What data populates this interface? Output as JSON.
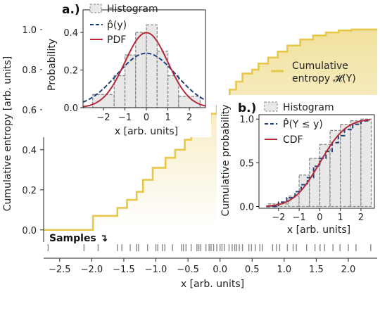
{
  "chart_data": [
    {
      "type": "line",
      "panel": "main",
      "xlabel": "x [arb. units]",
      "ylabel": "Cumulative entropy [arb. units]",
      "xlim": [
        -2.75,
        2.45
      ],
      "ylim": [
        -0.05,
        1.07
      ],
      "x_ticks": [
        "−2.5",
        "−2.0",
        "−1.5",
        "−1.0",
        "−0.5",
        "0.0",
        "0.5",
        "1.0",
        "1.5",
        "2.0"
      ],
      "x_tick_values": [
        -2.5,
        -2.0,
        -1.5,
        -1.0,
        -0.5,
        0.0,
        0.5,
        1.0,
        1.5,
        2.0
      ],
      "y_ticks": [
        "0.0",
        "0.2",
        "0.4",
        "0.6",
        "0.8",
        "1.0"
      ],
      "y_tick_values": [
        0.0,
        0.2,
        0.4,
        0.6,
        0.8,
        1.0
      ],
      "series": [
        {
          "name": "Cumulative entropy 𝓗(Y)",
          "color": "#e6c84d",
          "step_x": [
            -2.75,
            -1.98,
            -1.98,
            -1.6,
            -1.6,
            -1.45,
            -1.45,
            -1.3,
            -1.3,
            -1.2,
            -1.2,
            -1.05,
            -1.05,
            -0.85,
            -0.85,
            -0.7,
            -0.7,
            -0.55,
            -0.55,
            -0.45,
            -0.45,
            -0.25,
            -0.25,
            -0.15,
            -0.15,
            -0.05,
            -0.05,
            0.05,
            0.05,
            0.15,
            0.15,
            0.25,
            0.25,
            0.35,
            0.35,
            0.5,
            0.5,
            0.6,
            0.6,
            0.75,
            0.75,
            0.9,
            0.9,
            1.05,
            1.05,
            1.25,
            1.25,
            1.45,
            1.45,
            1.65,
            1.65,
            1.85,
            1.85,
            2.05,
            2.05,
            2.25,
            2.25,
            2.45
          ],
          "step_y": [
            0.0,
            0.0,
            0.07,
            0.07,
            0.11,
            0.11,
            0.15,
            0.15,
            0.19,
            0.19,
            0.25,
            0.25,
            0.31,
            0.31,
            0.36,
            0.36,
            0.4,
            0.4,
            0.45,
            0.45,
            0.48,
            0.48,
            0.53,
            0.53,
            0.58,
            0.58,
            0.62,
            0.62,
            0.66,
            0.66,
            0.7,
            0.7,
            0.74,
            0.74,
            0.78,
            0.78,
            0.8,
            0.8,
            0.83,
            0.83,
            0.86,
            0.86,
            0.89,
            0.89,
            0.92,
            0.92,
            0.95,
            0.95,
            0.97,
            0.97,
            0.985,
            0.985,
            0.995,
            0.995,
            1.0,
            1.0,
            1.0,
            1.0
          ]
        }
      ],
      "samples_label": "Samples ↴",
      "samples_x": [
        -2.68,
        -2.12,
        -1.9,
        -1.6,
        -1.53,
        -1.4,
        -1.3,
        -1.27,
        -1.13,
        -1.0,
        -0.97,
        -0.9,
        -0.86,
        -0.74,
        -0.6,
        -0.57,
        -0.53,
        -0.45,
        -0.36,
        -0.33,
        -0.3,
        -0.22,
        -0.17,
        -0.14,
        -0.1,
        -0.05,
        0.0,
        0.03,
        0.07,
        0.14,
        0.19,
        0.23,
        0.26,
        0.3,
        0.35,
        0.45,
        0.49,
        0.55,
        0.62,
        0.66,
        0.82,
        0.88,
        0.93,
        1.05,
        1.14,
        1.19,
        1.35,
        1.48,
        1.56,
        1.63,
        1.76,
        1.87,
        2.0,
        2.12,
        2.35
      ]
    },
    {
      "type": "bar",
      "panel": "a.)",
      "xlabel": "x [arb. units]",
      "ylabel": "Probability",
      "xlim": [
        -2.95,
        2.75
      ],
      "ylim": [
        0.0,
        0.52
      ],
      "x_ticks": [
        "−2",
        "−1",
        "0",
        "1",
        "2"
      ],
      "x_tick_values": [
        -2,
        -1,
        0,
        1,
        2
      ],
      "y_ticks": [
        "0.0",
        "0.2",
        "0.4"
      ],
      "y_tick_values": [
        0.0,
        0.2,
        0.4
      ],
      "histogram": {
        "name": "Histogram",
        "bin_edges": [
          -2.5,
          -1.5,
          -1.0,
          -0.5,
          0.0,
          0.5,
          1.0,
          1.5,
          2.5
        ],
        "values": [
          0.07,
          0.17,
          0.28,
          0.4,
          0.44,
          0.3,
          0.17,
          0.06
        ]
      },
      "series": [
        {
          "name": "p̂(y)",
          "color": "#1f3f7a",
          "style": "dashed",
          "mu": 0.0,
          "sigma": 1.38
        },
        {
          "name": "PDF",
          "color": "#b52a3a",
          "style": "solid",
          "mu": 0.0,
          "sigma": 1.0
        }
      ],
      "legend_entries": [
        "Histogram",
        "p̂(y)",
        "PDF"
      ]
    },
    {
      "type": "bar",
      "panel": "b.)",
      "xlabel": "x [arb. units]",
      "ylabel": "Cumulative probability",
      "xlim": [
        -2.95,
        2.65
      ],
      "ylim": [
        -0.02,
        1.05
      ],
      "x_ticks": [
        "−2",
        "−1",
        "0",
        "1",
        "2"
      ],
      "x_tick_values": [
        -2,
        -1,
        0,
        1,
        2
      ],
      "y_ticks": [
        "0.0",
        "0.5",
        "1.0"
      ],
      "y_tick_values": [
        0.0,
        0.5,
        1.0
      ],
      "histogram": {
        "name": "Histogram",
        "bin_edges": [
          -2.5,
          -1.5,
          -1.0,
          -0.5,
          0.0,
          0.5,
          1.0,
          1.5,
          2.0,
          2.5
        ],
        "values": [
          0.03,
          0.12,
          0.36,
          0.55,
          0.71,
          0.87,
          0.94,
          0.98,
          1.0
        ]
      },
      "series": [
        {
          "name": "P̂(Y ≤ y)",
          "color": "#1f3f7a",
          "style": "dashed",
          "step_x": [
            -2.6,
            -2.0,
            -2.0,
            -1.6,
            -1.6,
            -1.2,
            -1.2,
            -0.9,
            -0.9,
            -0.6,
            -0.6,
            -0.3,
            -0.3,
            0.0,
            0.0,
            0.3,
            0.3,
            0.6,
            0.6,
            0.9,
            0.9,
            1.2,
            1.2,
            1.6,
            1.6,
            2.0,
            2.0,
            2.45
          ],
          "step_y": [
            0.0,
            0.0,
            0.05,
            0.05,
            0.1,
            0.1,
            0.17,
            0.17,
            0.25,
            0.25,
            0.33,
            0.33,
            0.46,
            0.46,
            0.55,
            0.55,
            0.63,
            0.63,
            0.73,
            0.73,
            0.81,
            0.81,
            0.88,
            0.88,
            0.94,
            0.94,
            0.98,
            0.98
          ]
        },
        {
          "name": "CDF",
          "color": "#b52a3a",
          "style": "solid",
          "mu": 0.0,
          "sigma": 1.0
        }
      ],
      "legend_entries": [
        "Histogram",
        "P̂(Y ≤ y)",
        "CDF"
      ]
    }
  ],
  "labels": {
    "panel_a": "a.)",
    "panel_b": "b.)",
    "main_legend_line1": "Cumulative",
    "main_legend_line2": "entropy 𝓗(Y)"
  },
  "colors": {
    "gold": "#e6c84d",
    "blue": "#1f3f7a",
    "red": "#b52a3a",
    "hist_fill": "#e8e8e8",
    "hist_edge": "#888888"
  }
}
